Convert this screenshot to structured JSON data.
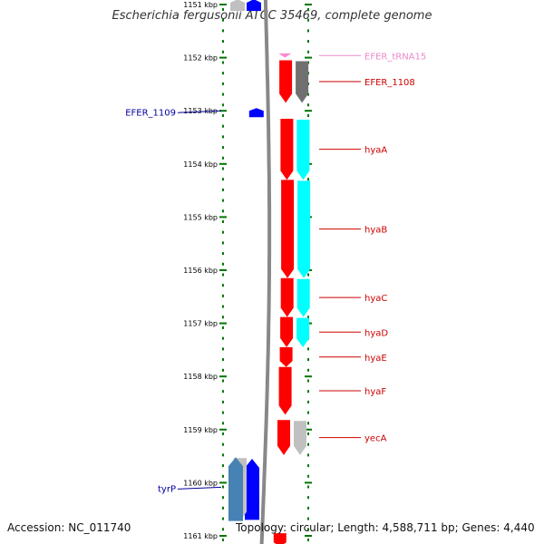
{
  "title": "Escherichia fergusonii ATCC 35469, complete genome",
  "footer": {
    "accession": "Accession: NC_011740",
    "topology": "Topology: circular; Length: 4,588,711 bp; Genes: 4,440"
  },
  "colors": {
    "red_gene": "#ff0000",
    "blue_gene": "#0000ff",
    "steel_gene": "#4682b4",
    "gray_gene": "#c0c0c0",
    "dark_gray_gene": "#707070",
    "cyan_gene": "#00ffff",
    "trna": "#ff88cc",
    "label_red": "#cc0000",
    "label_blue": "#000099",
    "label_pink": "#ee88cc",
    "scale_green": "#007700",
    "backbone": "#888888"
  },
  "ruler": {
    "unit": "kbp",
    "ticks": [
      "1151 kbp",
      "1152 kbp",
      "1153 kbp",
      "1154 kbp",
      "1155 kbp",
      "1156 kbp",
      "1157 kbp",
      "1158 kbp",
      "1159 kbp",
      "1160 kbp",
      "1161 kbp"
    ]
  },
  "features": [
    {
      "label": "EFER_tRNA15",
      "type": "tRNA",
      "track": "right_outer",
      "start": 1151.92,
      "end": 1152.0,
      "color": "trna",
      "label_color": "label_pink"
    },
    {
      "label": "EFER_1108",
      "type": "gene",
      "track": "right_outer",
      "start": 1152.05,
      "end": 1152.85,
      "color": "red_gene",
      "label_color": "label_red",
      "shadow": "dark_gray_gene"
    },
    {
      "label": "EFER_1109",
      "type": "gene",
      "track": "left_inner",
      "start": 1152.95,
      "end": 1153.12,
      "color": "blue_gene",
      "label_color": "label_blue"
    },
    {
      "label": "hyaA",
      "type": "gene",
      "track": "right_outer",
      "start": 1153.15,
      "end": 1154.3,
      "color": "red_gene",
      "label_color": "label_red",
      "shadow": "cyan_gene"
    },
    {
      "label": "hyaB",
      "type": "gene",
      "track": "right_outer",
      "start": 1154.3,
      "end": 1156.15,
      "color": "red_gene",
      "label_color": "label_red",
      "shadow": "cyan_gene"
    },
    {
      "label": "hyaC",
      "type": "gene",
      "track": "right_outer",
      "start": 1156.15,
      "end": 1156.88,
      "color": "red_gene",
      "label_color": "label_red",
      "shadow": "cyan_gene"
    },
    {
      "label": "hyaD",
      "type": "gene",
      "track": "right_outer",
      "start": 1156.88,
      "end": 1157.45,
      "color": "red_gene",
      "label_color": "label_red",
      "shadow": "cyan_gene"
    },
    {
      "label": "hyaE",
      "type": "gene",
      "track": "right_outer",
      "start": 1157.45,
      "end": 1157.82,
      "color": "red_gene",
      "label_color": "label_red"
    },
    {
      "label": "hyaF",
      "type": "gene",
      "track": "right_outer",
      "start": 1157.82,
      "end": 1158.72,
      "color": "red_gene",
      "label_color": "label_red"
    },
    {
      "label": "yecA",
      "type": "gene",
      "track": "right_outer",
      "start": 1158.82,
      "end": 1159.48,
      "color": "red_gene",
      "label_color": "label_red",
      "shadow": "gray_gene"
    },
    {
      "label": "tyrP",
      "type": "gene",
      "track": "left_outer",
      "start": 1159.52,
      "end": 1160.72,
      "color": "steel_gene",
      "label_color": "label_blue",
      "shadow": "gray_gene"
    }
  ],
  "unlabeled": [
    {
      "track": "left_outer",
      "start": 1150.9,
      "end": 1151.12,
      "color": "gray_gene"
    },
    {
      "track": "left_inner",
      "start": 1150.9,
      "end": 1151.12,
      "color": "blue_gene"
    },
    {
      "track": "left_inner",
      "start": 1159.55,
      "end": 1160.7,
      "color": "blue_gene"
    },
    {
      "track": "right_outer",
      "start": 1160.95,
      "end": 1161.2,
      "color": "red_gene"
    }
  ]
}
